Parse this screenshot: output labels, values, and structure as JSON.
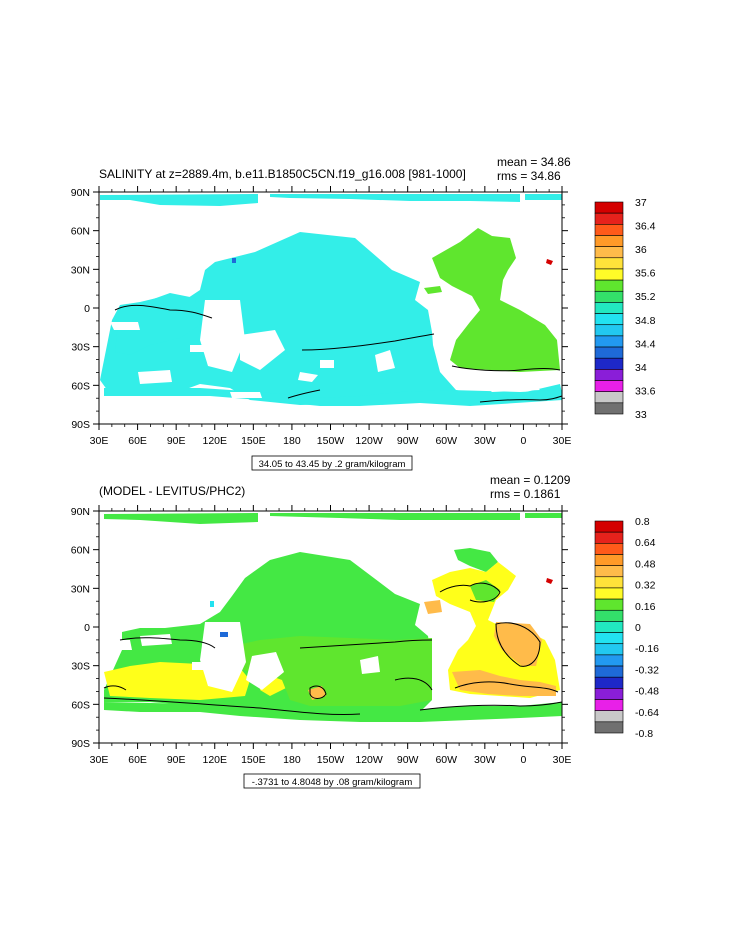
{
  "chart_data": [
    {
      "type": "heatmap",
      "title": "SALINITY at z=2889.4m, b.e11.B1850C5CN.f19_g16.008 [981-1000]",
      "stats": [
        "mean = 34.86",
        "rms = 34.86"
      ],
      "xticks": [
        "30E",
        "60E",
        "90E",
        "120E",
        "150E",
        "180",
        "150W",
        "120W",
        "90W",
        "60W",
        "30W",
        "0",
        "30E"
      ],
      "yticks": [
        "90N",
        "60N",
        "30N",
        "0",
        "30S",
        "60S",
        "90S"
      ],
      "info": "34.05 to 43.45 by .2 gram/kilogram",
      "colorbar_labels": [
        "37",
        "36.4",
        "36",
        "35.6",
        "35.2",
        "34.8",
        "34.4",
        "34",
        "33.6",
        "33"
      ],
      "colorbar_colors": [
        "#d40000",
        "#e6221c",
        "#ff5a1a",
        "#ff9a28",
        "#ffbb4a",
        "#ffe23a",
        "#fffb28",
        "#5fe62e",
        "#33e06a",
        "#22e8c0",
        "#22e2f0",
        "#22c8f0",
        "#2299f0",
        "#1e6ad8",
        "#1e28c8",
        "#8a1ed8",
        "#e820e8",
        "#c8c8c8",
        "#707070"
      ],
      "ocean_color": "#33eee8"
    },
    {
      "type": "heatmap",
      "title": "(MODEL - LEVITUS/PHC2)",
      "stats": [
        "mean = 0.1209",
        "rms = 0.1861"
      ],
      "xticks": [
        "30E",
        "60E",
        "90E",
        "120E",
        "150E",
        "180",
        "150W",
        "120W",
        "90W",
        "60W",
        "30W",
        "0",
        "30E"
      ],
      "yticks": [
        "90N",
        "60N",
        "30N",
        "0",
        "30S",
        "60S",
        "90S"
      ],
      "info": "-.3731 to 4.8048 by .08 gram/kilogram",
      "colorbar_labels": [
        "0.8",
        "0.64",
        "0.48",
        "0.32",
        "0.16",
        "0",
        "-0.16",
        "-0.32",
        "-0.48",
        "-0.64",
        "-0.8"
      ],
      "colorbar_colors": [
        "#d40000",
        "#e6221c",
        "#ff5a1a",
        "#ff9a28",
        "#ffbb4a",
        "#ffe23a",
        "#fffb28",
        "#5fe62e",
        "#33e06a",
        "#22e8c0",
        "#22e2f0",
        "#22c8f0",
        "#2299f0",
        "#1e6ad8",
        "#1e28c8",
        "#8a1ed8",
        "#e820e8",
        "#c8c8c8",
        "#707070"
      ],
      "ocean_color": "#44e844"
    }
  ]
}
